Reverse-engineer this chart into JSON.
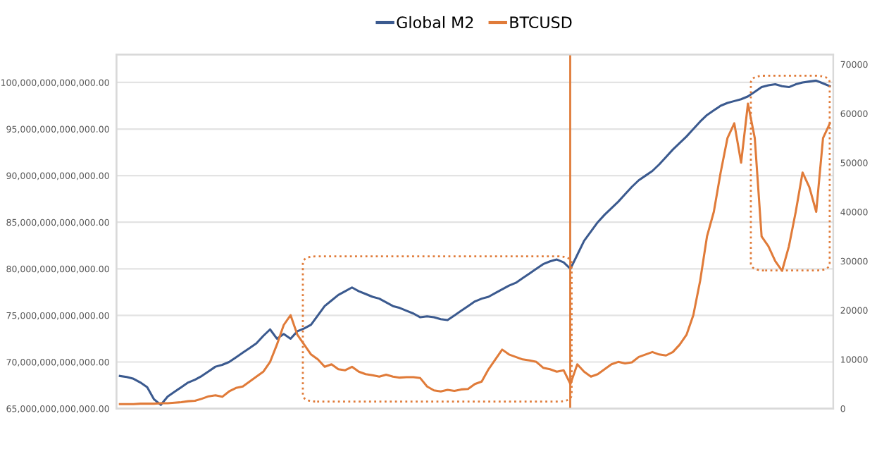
{
  "chart_data": {
    "type": "line",
    "categories": [
      null,
      null,
      null,
      null,
      null,
      null,
      null,
      null,
      null,
      null,
      null,
      null,
      null,
      null,
      null,
      null,
      null,
      null,
      null,
      null,
      null,
      null,
      null,
      null,
      null,
      null,
      null,
      null,
      null,
      null,
      null,
      null,
      null,
      null,
      null,
      null,
      null,
      null,
      null,
      null,
      null,
      null,
      null,
      null,
      null,
      null,
      null,
      null,
      null,
      null,
      null,
      null,
      null,
      null,
      null,
      null,
      null,
      null,
      null,
      null,
      null,
      null,
      null,
      null,
      null,
      null,
      null,
      null,
      null,
      null,
      null,
      null,
      null,
      null,
      null,
      null,
      null,
      null,
      null,
      null,
      null,
      null,
      null,
      null,
      null,
      null,
      null,
      null,
      null,
      null,
      null,
      null,
      null,
      null,
      null,
      null,
      null,
      null,
      null,
      null,
      null,
      null,
      null,
      null,
      null
    ],
    "series": [
      {
        "name": "Global M2",
        "color": "#3b5a8f",
        "values": [
          68500000000000.0,
          68400000000000.0,
          68200000000000.0,
          67800000000000.0,
          67300000000000.0,
          66000000000000.0,
          65400000000000.0,
          66300000000000.0,
          66800000000000.0,
          67300000000000.0,
          67800000000000.0,
          68100000000000.0,
          68500000000000.0,
          69000000000000.0,
          69500000000000.0,
          69700000000000.0,
          70000000000000.0,
          70500000000000.0,
          71000000000000.0,
          71500000000000.0,
          72000000000000.0,
          72800000000000.0,
          73500000000000.0,
          72500000000000.0,
          73000000000000.0,
          72500000000000.0,
          73300000000000.0,
          73600000000000.0,
          74000000000000.0,
          75000000000000.0,
          76000000000000.0,
          76600000000000.0,
          77200000000000.0,
          77600000000000.0,
          78000000000000.0,
          77600000000000.0,
          77300000000000.0,
          77000000000000.0,
          76800000000000.0,
          76400000000000.0,
          76000000000000.0,
          75800000000000.0,
          75500000000000.0,
          75200000000000.0,
          74800000000000.0,
          74900000000000.0,
          74800000000000.0,
          74600000000000.0,
          74500000000000.0,
          75000000000000.0,
          75500000000000.0,
          76000000000000.0,
          76500000000000.0,
          76800000000000.0,
          77000000000000.0,
          77400000000000.0,
          77800000000000.0,
          78200000000000.0,
          78500000000000.0,
          79000000000000.0,
          79500000000000.0,
          80000000000000.0,
          80500000000000.0,
          80800000000000.0,
          81000000000000.0,
          80700000000000.0,
          80000000000000.0,
          81500000000000.0,
          83000000000000.0,
          84000000000000.0,
          85000000000000.0,
          85800000000000.0,
          86500000000000.0,
          87200000000000.0,
          88000000000000.0,
          88800000000000.0,
          89500000000000.0,
          90000000000000.0,
          90500000000000.0,
          91200000000000.0,
          92000000000000.0,
          92800000000000.0,
          93500000000000.0,
          94200000000000.0,
          95000000000000.0,
          95800000000000.0,
          96500000000000.0,
          97000000000000.0,
          97500000000000.0,
          97800000000000.0,
          98000000000000.0,
          98200000000000.0,
          98500000000000.0,
          99000000000000.0,
          99500000000000.0,
          99700000000000.0,
          99800000000000.0,
          99600000000000.0,
          99500000000000.0,
          99800000000000.0,
          100000000000000.0,
          100100000000000.0,
          100200000000000.0,
          99900000000000.0,
          99600000000000.0
        ]
      },
      {
        "name": "BTCUSD",
        "color": "#e07b39",
        "axis": "y2",
        "values": [
          900,
          900,
          900,
          1000,
          1000,
          1000,
          1100,
          1100,
          1200,
          1300,
          1500,
          1600,
          2000,
          2500,
          2700,
          2400,
          3500,
          4200,
          4500,
          5500,
          6500,
          7500,
          9500,
          13000,
          17000,
          19000,
          15000,
          13000,
          11000,
          10000,
          8500,
          9000,
          8000,
          7800,
          8500,
          7500,
          7000,
          6800,
          6500,
          6900,
          6500,
          6300,
          6400,
          6400,
          6200,
          4500,
          3700,
          3500,
          3800,
          3600,
          3900,
          4000,
          5000,
          5500,
          8000,
          10000,
          12000,
          11000,
          10500,
          10000,
          9800,
          9500,
          8300,
          8000,
          7500,
          7800,
          5000,
          9000,
          7500,
          6500,
          7000,
          8000,
          9000,
          9500,
          9200,
          9400,
          10500,
          11000,
          11500,
          11000,
          10800,
          11500,
          13000,
          15000,
          19000,
          26000,
          35000,
          40000,
          48000,
          55000,
          58000,
          50000,
          62000,
          55000,
          35000,
          33000,
          30000,
          28000,
          33000,
          40000,
          48000,
          45000,
          40000,
          55000,
          58000
        ]
      }
    ],
    "ylim": [
      65000000000000.0,
      103000000000000.0
    ],
    "yticks": [
      {
        "value": 65000000000000.0,
        "label": "65,000,000,000,000.00"
      },
      {
        "value": 70000000000000.0,
        "label": "70,000,000,000,000.00"
      },
      {
        "value": 75000000000000.0,
        "label": "75,000,000,000,000.00"
      },
      {
        "value": 80000000000000.0,
        "label": "80,000,000,000,000.00"
      },
      {
        "value": 85000000000000.0,
        "label": "85,000,000,000,000.00"
      },
      {
        "value": 90000000000000.0,
        "label": "90,000,000,000,000.00"
      },
      {
        "value": 95000000000000.0,
        "label": "95,000,000,000,000.00"
      },
      {
        "value": 100000000000000.0,
        "label": "100,000,000,000,000.00"
      }
    ],
    "y2lim": [
      0,
      72000
    ],
    "y2ticks": [
      0,
      10000,
      20000,
      30000,
      40000,
      50000,
      60000,
      70000
    ],
    "grid": "y",
    "legend": "top",
    "line_style": "solid",
    "marker": "none"
  }
}
